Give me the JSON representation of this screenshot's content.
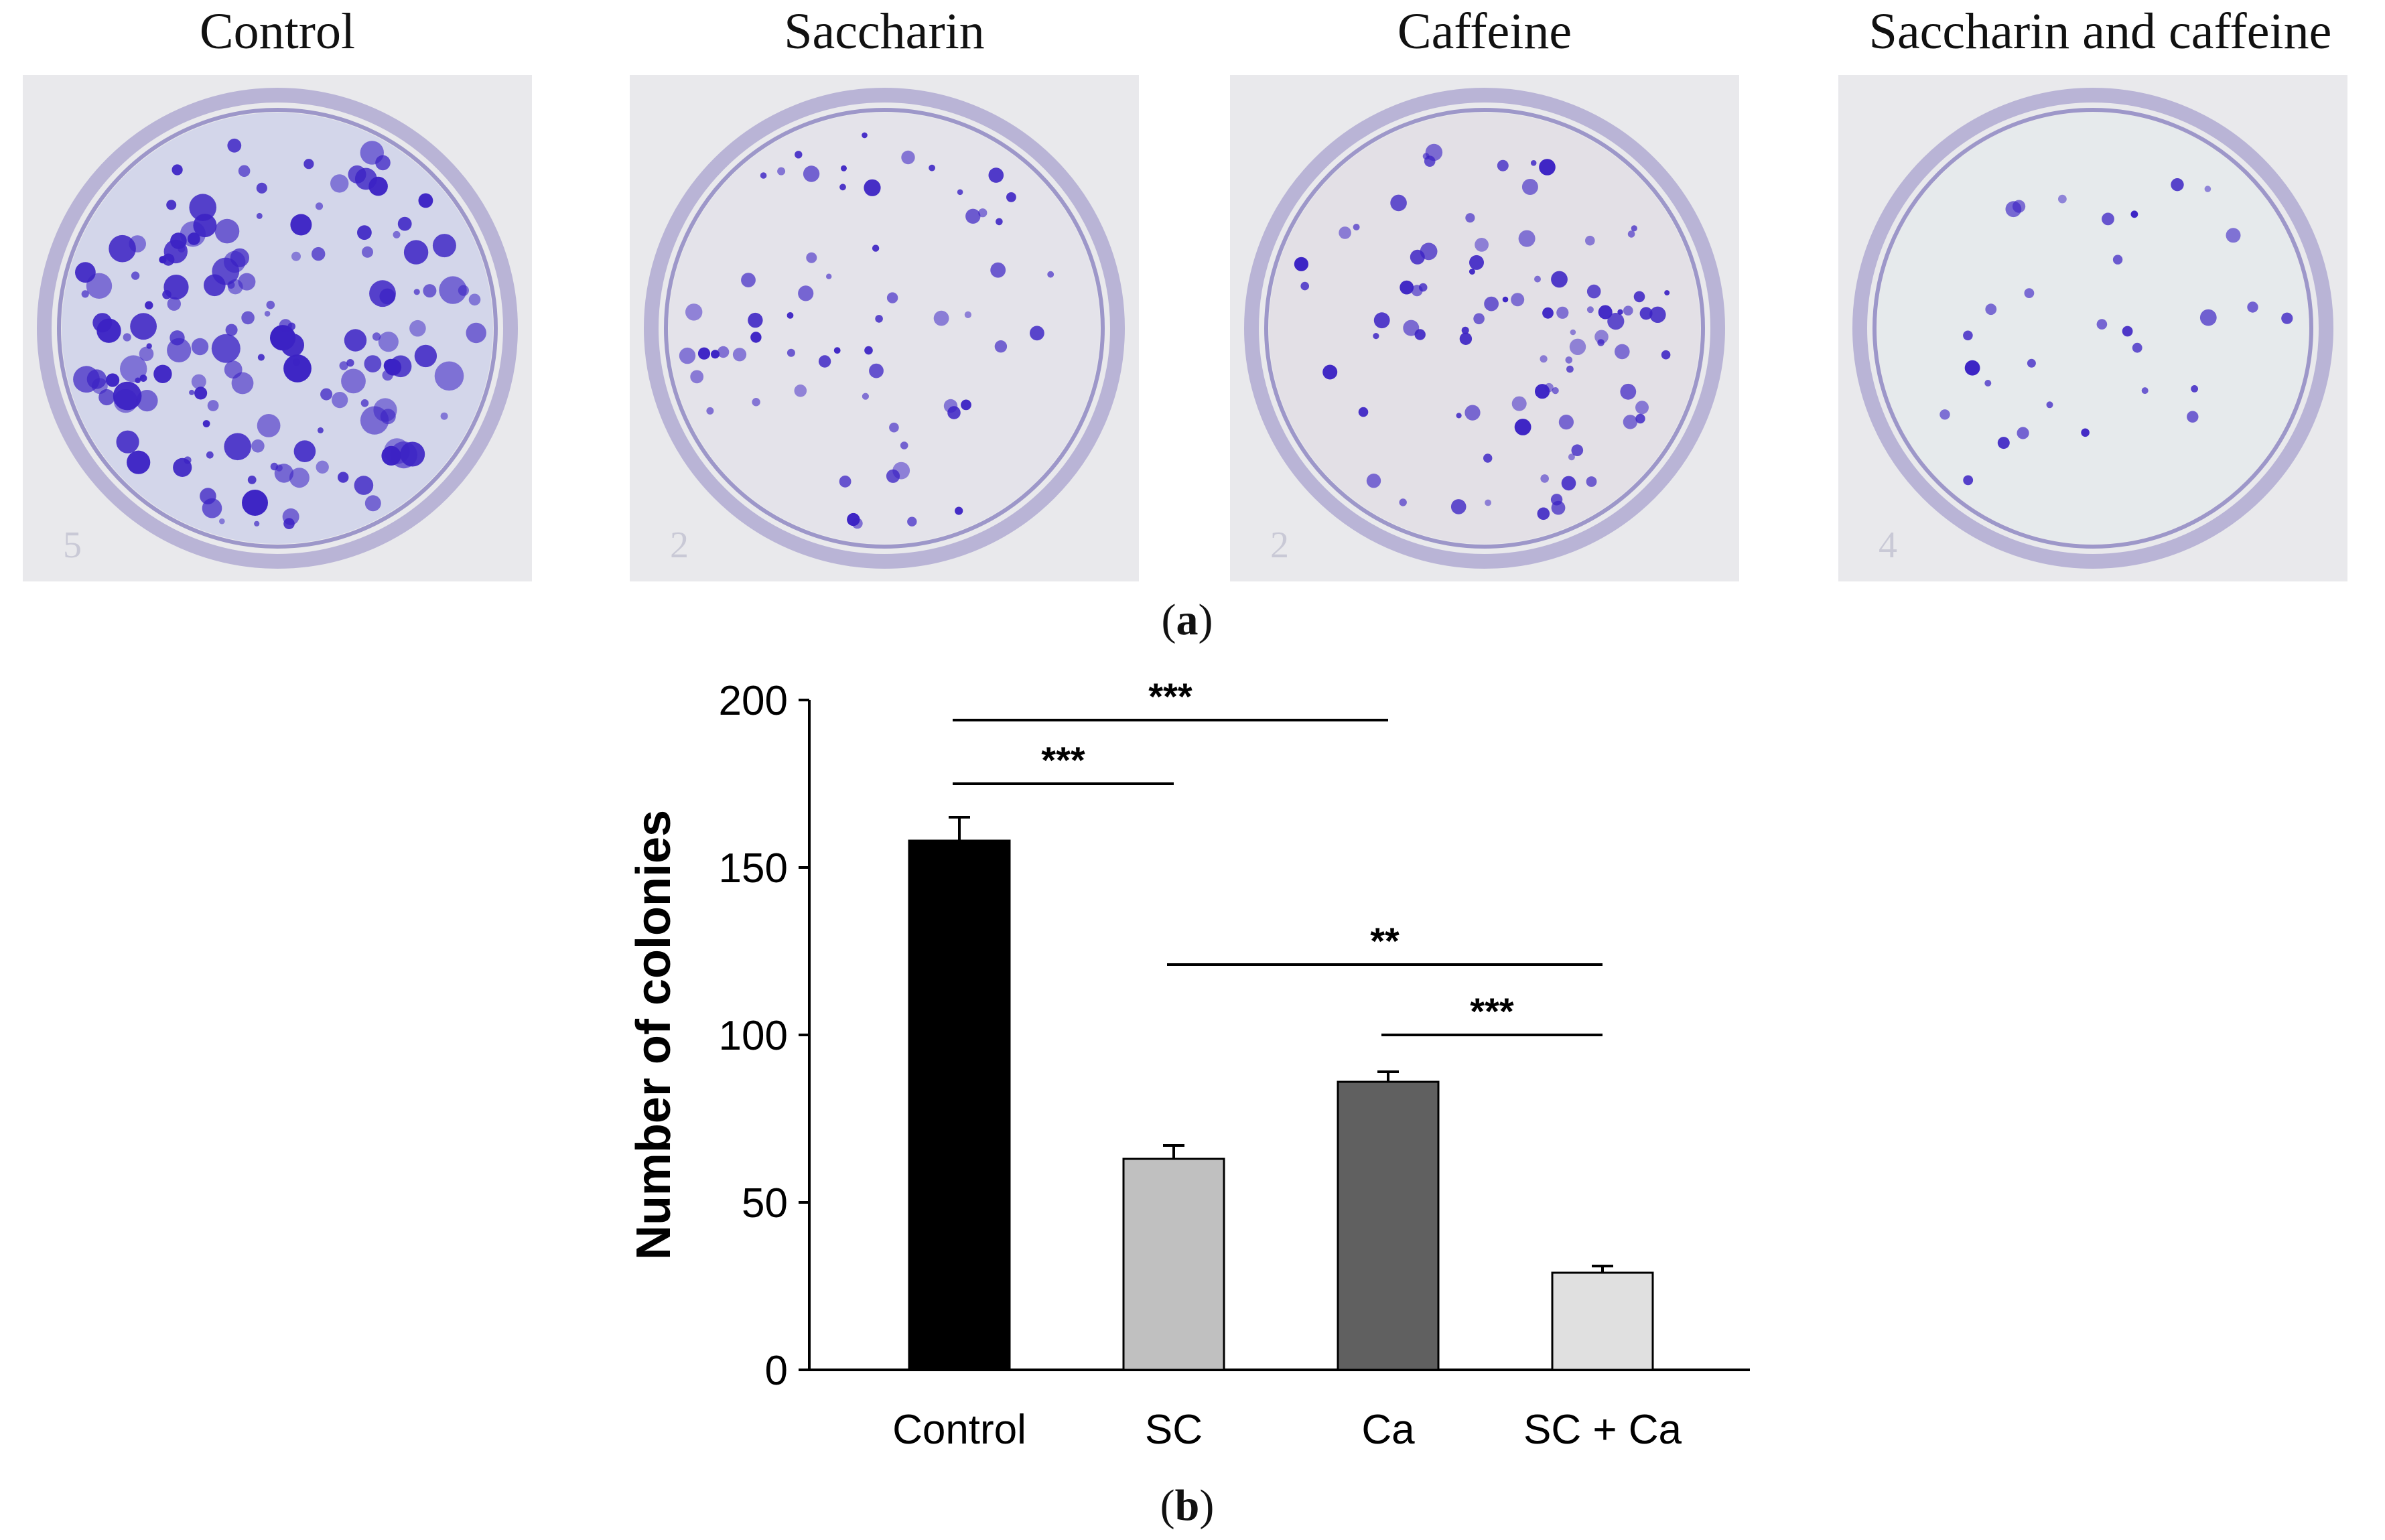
{
  "panel_a": {
    "label_letter": "a",
    "plates": [
      {
        "title": "Control",
        "well_number": "5",
        "colony_count": 150,
        "plate_tint": "#d3d6ea"
      },
      {
        "title": "Saccharin",
        "well_number": "2",
        "colony_count": 60,
        "plate_tint": "#e4e3ea"
      },
      {
        "title": "Caffeine",
        "well_number": "2",
        "colony_count": 85,
        "plate_tint": "#e3e0e6"
      },
      {
        "title": "Saccharin and caffeine",
        "well_number": "4",
        "colony_count": 30,
        "plate_tint": "#e6eaec"
      }
    ],
    "stain_color": "#3b22c4"
  },
  "panel_b": {
    "label_letter": "b"
  },
  "chart_data": {
    "type": "bar",
    "categories": [
      "Control",
      "SC",
      "Ca",
      "SC + Ca"
    ],
    "values": [
      158,
      63,
      86,
      29
    ],
    "errors": [
      7,
      4,
      3,
      2
    ],
    "bar_colors": [
      "#000000",
      "#c0c0c0",
      "#606060",
      "#e0e0e0"
    ],
    "ylabel": "Number of colonies",
    "xlabel": "",
    "ylim": [
      0,
      200
    ],
    "yticks": [
      0,
      50,
      100,
      150,
      200
    ],
    "grid": false,
    "significance": [
      {
        "from": "Control",
        "to": "Ca",
        "y": 194,
        "label": "***"
      },
      {
        "from": "Control",
        "to": "SC",
        "y": 175,
        "label": "***"
      },
      {
        "from": "SC",
        "to": "SC + Ca",
        "y": 121,
        "label": "**"
      },
      {
        "from": "Ca",
        "to": "SC + Ca",
        "y": 100,
        "label": "***"
      }
    ]
  }
}
